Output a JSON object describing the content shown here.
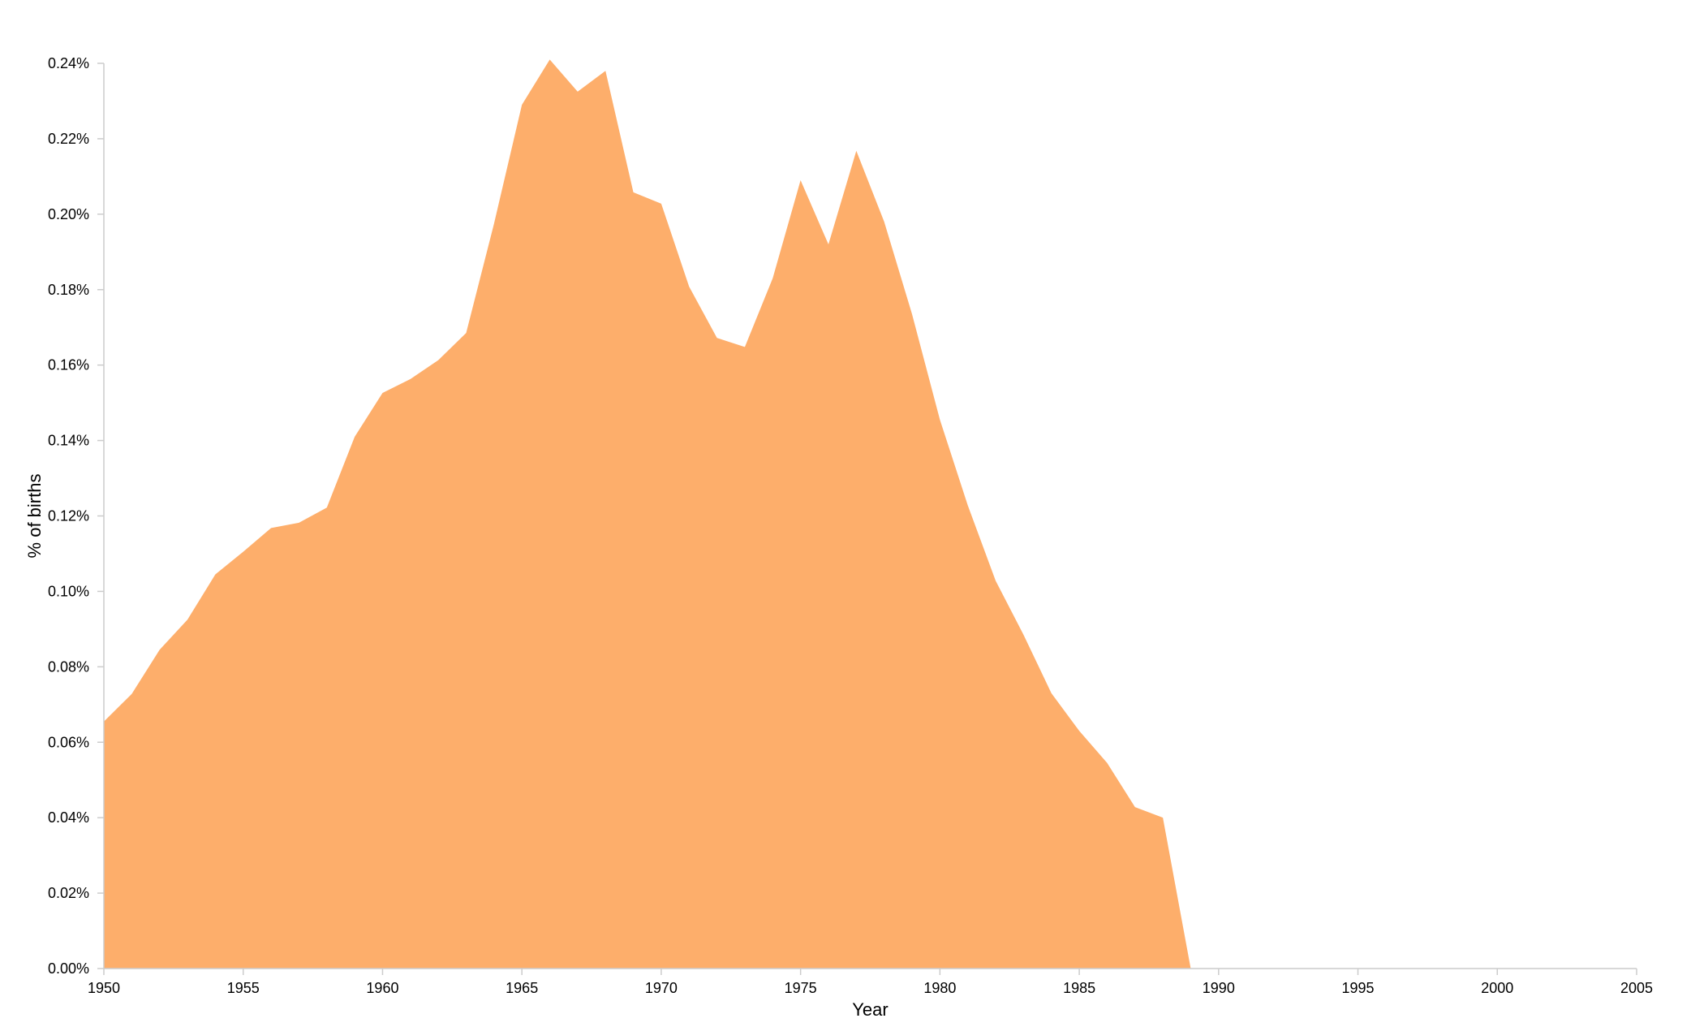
{
  "colors": {
    "area_fill": "#fdae6b",
    "axis": "#cccccc",
    "text": "#000000",
    "background": "#ffffff"
  },
  "chart_data": {
    "type": "area",
    "title": "",
    "xlabel": "Year",
    "ylabel": "% of births",
    "xlim": [
      1950,
      2005
    ],
    "ylim": [
      0,
      0.24
    ],
    "grid": false,
    "legend": "none",
    "x_ticks": [
      "1950",
      "1955",
      "1960",
      "1965",
      "1970",
      "1975",
      "1980",
      "1985",
      "1990",
      "1995",
      "2000",
      "2005"
    ],
    "y_ticks": [
      "0.00%",
      "0.02%",
      "0.04%",
      "0.06%",
      "0.08%",
      "0.10%",
      "0.12%",
      "0.14%",
      "0.16%",
      "0.18%",
      "0.20%",
      "0.22%",
      "0.24%"
    ],
    "series": [
      {
        "values_unit": "percent of births",
        "x": [
          1950,
          1951,
          1952,
          1953,
          1954,
          1955,
          1956,
          1957,
          1958,
          1959,
          1960,
          1961,
          1962,
          1963,
          1964,
          1965,
          1966,
          1967,
          1968,
          1969,
          1970,
          1971,
          1972,
          1973,
          1974,
          1975,
          1976,
          1977,
          1978,
          1979,
          1980,
          1981,
          1982,
          1983,
          1984,
          1985,
          1986,
          1987,
          1988,
          1989,
          1990,
          1991,
          1992,
          1993,
          1994,
          1995,
          1996,
          1997,
          1998,
          1999,
          2000,
          2001,
          2002,
          2003,
          2004,
          2005
        ],
        "values": [
          0.0655,
          0.0728,
          0.0845,
          0.0925,
          0.1045,
          0.1105,
          0.1168,
          0.1182,
          0.1222,
          0.141,
          0.1526,
          0.1563,
          0.1613,
          0.1685,
          0.1975,
          0.229,
          0.241,
          0.2325,
          0.238,
          0.2058,
          0.2028,
          0.1808,
          0.1672,
          0.1648,
          0.183,
          0.209,
          0.192,
          0.2168,
          0.198,
          0.1735,
          0.1455,
          0.1228,
          0.1028,
          0.0885,
          0.073,
          0.063,
          0.0545,
          0.0428,
          0.04,
          0.0,
          0,
          0,
          0,
          0,
          0,
          0,
          0,
          0,
          0,
          0,
          0,
          0,
          0,
          0,
          0,
          0
        ]
      }
    ]
  }
}
